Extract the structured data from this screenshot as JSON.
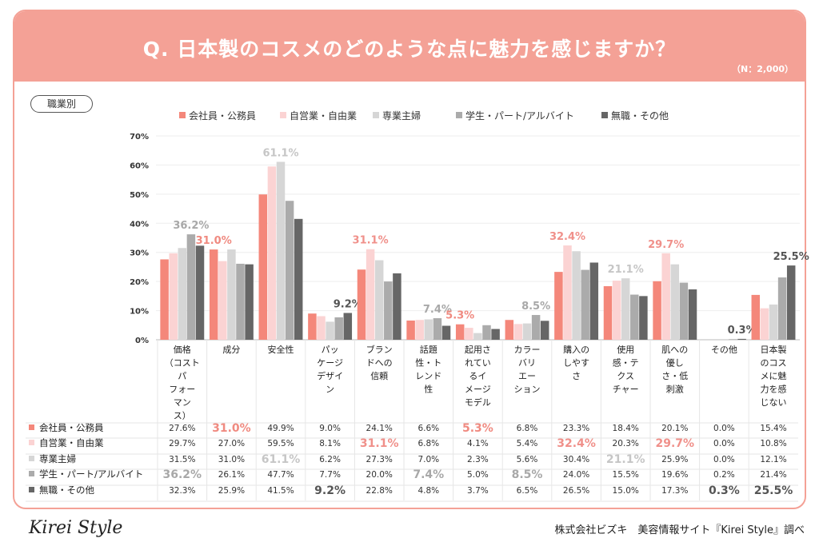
{
  "header": {
    "title": "Q. 日本製のコスメのどのような点に魅力を感じますか？",
    "n_label": "（N：2,000）"
  },
  "filter_label": "職業別",
  "footer": {
    "logo": "Kirei Style",
    "credit": "株式会社ビズキ　美容情報サイト『Kirei Style』調べ"
  },
  "chart_data": {
    "type": "bar",
    "ylim": [
      0,
      70
    ],
    "yticks": [
      "0%",
      "10%",
      "20%",
      "30%",
      "40%",
      "50%",
      "60%",
      "70%"
    ],
    "grid": true,
    "legend_placement": "top",
    "categories": [
      [
        "価格",
        "（コスト",
        "パ",
        "フォー",
        "マン",
        "ス）"
      ],
      [
        "成分"
      ],
      [
        "安全性"
      ],
      [
        "パッ",
        "ケージ",
        "デザイ",
        "ン"
      ],
      [
        "ブラン",
        "ドへの",
        "信頼"
      ],
      [
        "話題",
        "性・ト",
        "レンド",
        "性"
      ],
      [
        "起用さ",
        "れてい",
        "るイ",
        "メージ",
        "モデル"
      ],
      [
        "カラー",
        "バリ",
        "エー",
        "ション"
      ],
      [
        "購入の",
        "しやす",
        "さ"
      ],
      [
        "使用",
        "感・テ",
        "クス",
        "チャー"
      ],
      [
        "肌への",
        "優し",
        "さ・低",
        "刺激"
      ],
      [
        "その他"
      ],
      [
        "日本製",
        "のコス",
        "メに魅",
        "力を感",
        "じない"
      ]
    ],
    "series": [
      {
        "name": "会社員・公務員",
        "color": "#f4877a",
        "label_color": "#f08a80",
        "values": [
          27.6,
          31.0,
          49.9,
          9.0,
          24.1,
          6.6,
          5.3,
          6.8,
          23.3,
          18.4,
          20.1,
          0.0,
          15.4
        ]
      },
      {
        "name": "自営業・自由業",
        "color": "#fbd3d3",
        "label_color": "#f0908a",
        "values": [
          29.7,
          27.0,
          59.5,
          8.1,
          31.1,
          6.8,
          4.1,
          5.4,
          32.4,
          20.3,
          29.7,
          0.0,
          10.8
        ]
      },
      {
        "name": "専業主婦",
        "color": "#d6d6d6",
        "label_color": "#c6c6c6",
        "values": [
          31.5,
          31.0,
          61.1,
          6.2,
          27.3,
          7.0,
          2.3,
          5.6,
          30.4,
          21.1,
          25.9,
          0.0,
          12.1
        ]
      },
      {
        "name": "学生・パート/アルバイト",
        "color": "#ababab",
        "label_color": "#a8a8a8",
        "values": [
          36.2,
          26.1,
          47.7,
          7.7,
          20.0,
          7.4,
          5.0,
          8.5,
          24.0,
          15.5,
          19.6,
          0.2,
          21.4
        ]
      },
      {
        "name": "無職・その他",
        "color": "#666666",
        "label_color": "#555555",
        "values": [
          32.3,
          25.9,
          41.5,
          9.2,
          22.8,
          4.8,
          3.7,
          6.5,
          26.5,
          15.0,
          17.3,
          0.3,
          25.5
        ]
      }
    ],
    "highlight_series": [
      3,
      0,
      2,
      4,
      1,
      3,
      0,
      3,
      1,
      2,
      1,
      4,
      4
    ]
  }
}
